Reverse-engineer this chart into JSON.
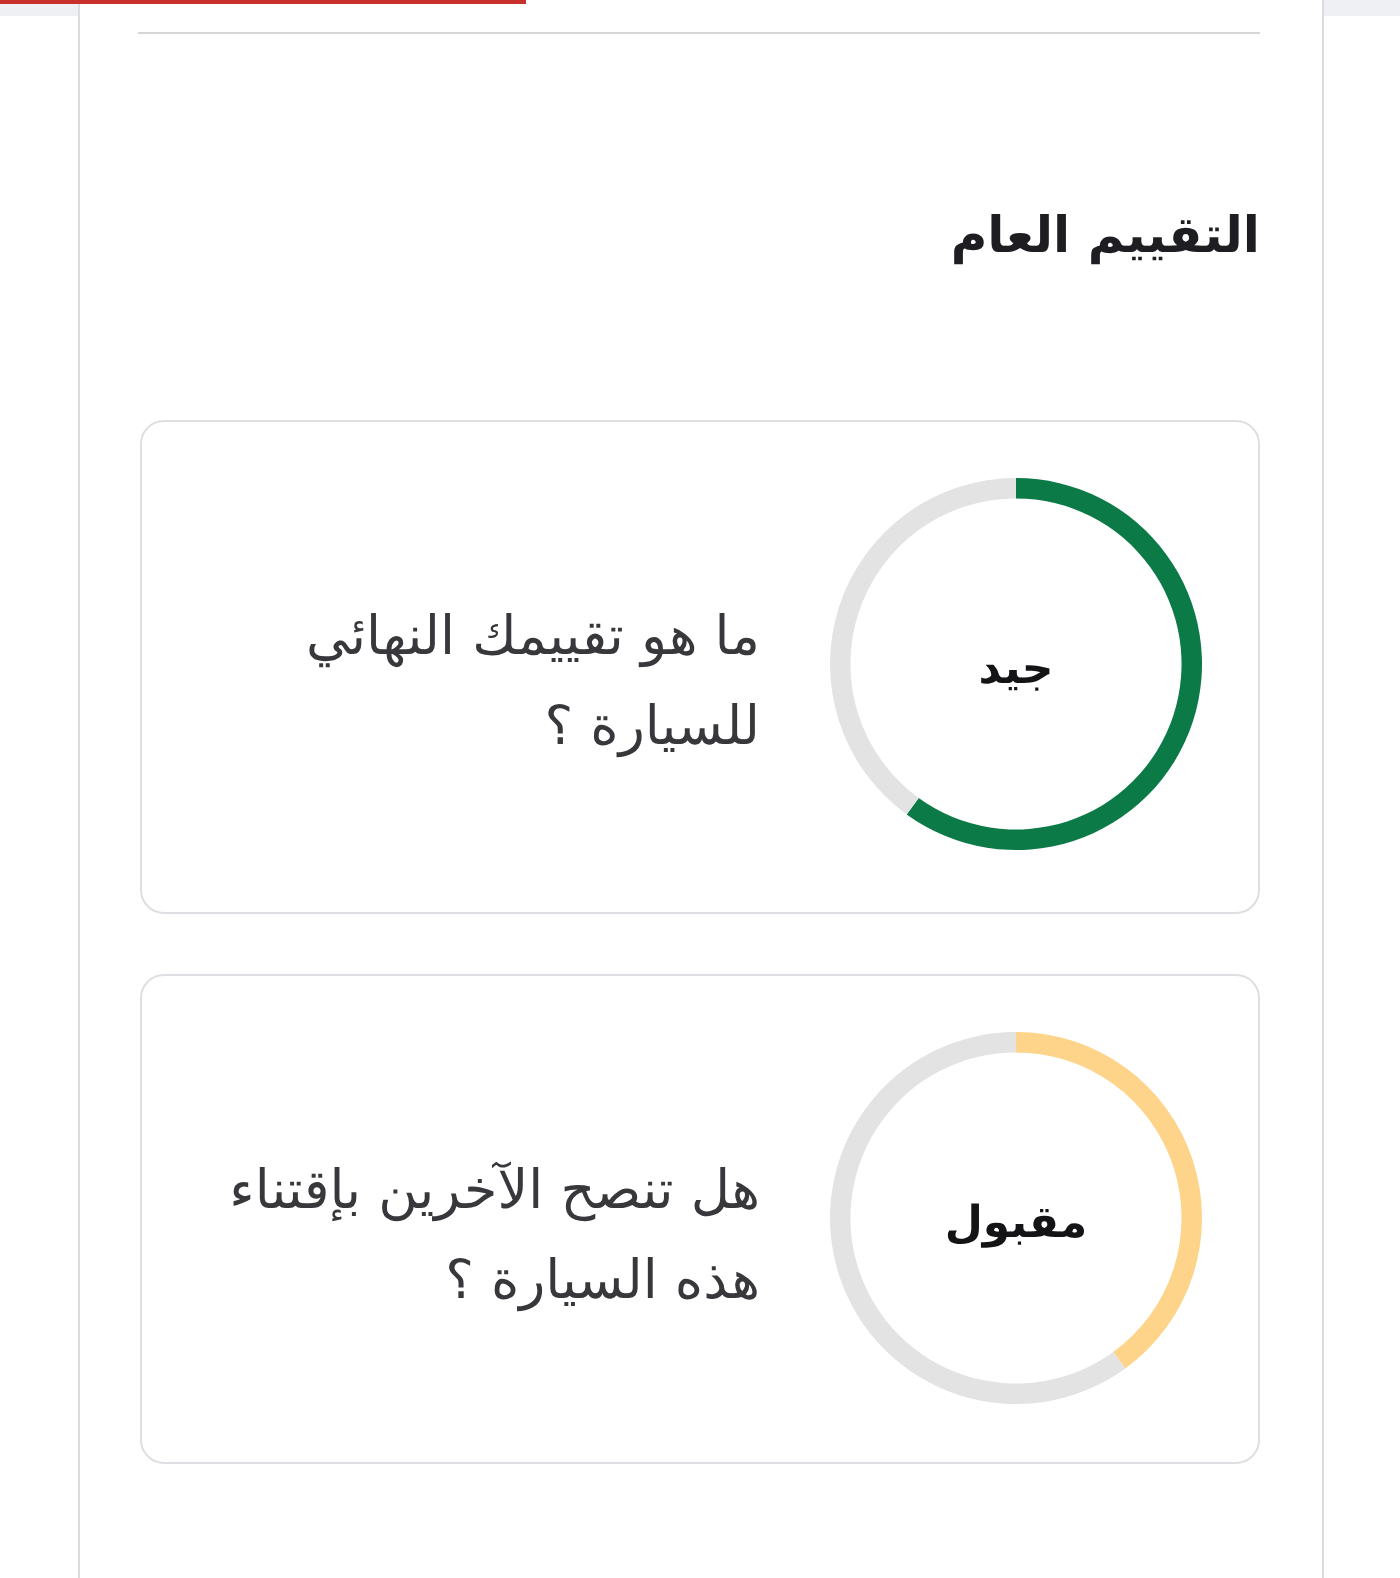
{
  "chart_data": [
    {
      "type": "other",
      "title": "التقييم العام"
    },
    {
      "type": "donut",
      "title": "ما هو تقييمك النهائي للسيارة ؟",
      "categories": [
        null,
        null
      ],
      "values": [
        60,
        40
      ],
      "colors": [
        "#0b7a47",
        "#e3e3e3"
      ],
      "annotations": [
        "جيد"
      ]
    },
    {
      "type": "donut",
      "title": "هل تنصح الآخرين بإقتناء هذه السيارة ؟",
      "categories": [
        null,
        null
      ],
      "values": [
        40,
        60
      ],
      "colors": [
        "#fdd48a",
        "#e3e3e3"
      ],
      "annotations": [
        "مقبول"
      ]
    }
  ]
}
